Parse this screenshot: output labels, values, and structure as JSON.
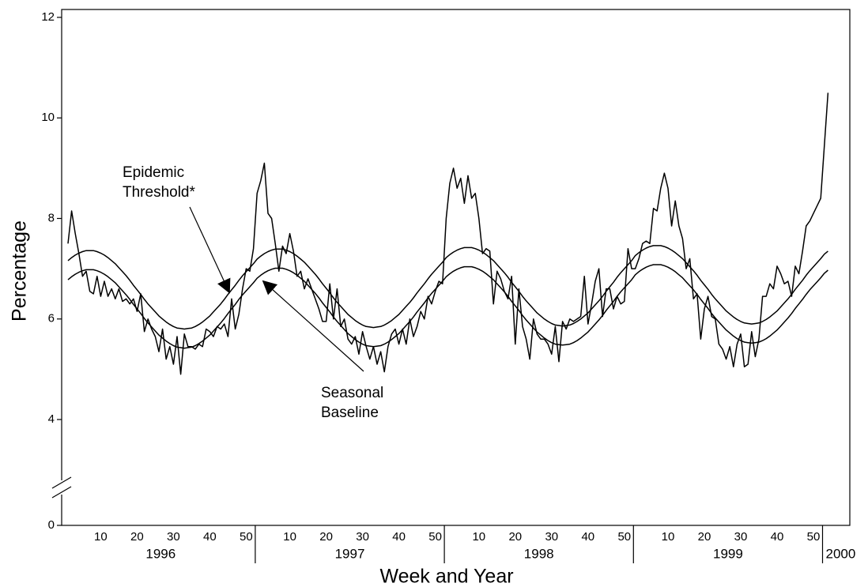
{
  "chart_data": {
    "type": "line",
    "x_label": "Week and Year",
    "y_label": "Percentage",
    "ylim": [
      0,
      12
    ],
    "yticks": [
      0,
      4,
      6,
      8,
      10,
      12
    ],
    "y_axis_break": true,
    "groups": [
      {
        "label": "1996",
        "categories": [
          null,
          null,
          null,
          null,
          null,
          null,
          null,
          null,
          null,
          "10",
          null,
          null,
          null,
          null,
          null,
          null,
          null,
          null,
          null,
          "20",
          null,
          null,
          null,
          null,
          null,
          null,
          null,
          null,
          null,
          "30",
          null,
          null,
          null,
          null,
          null,
          null,
          null,
          null,
          null,
          "40",
          null,
          null,
          null,
          null,
          null,
          null,
          null,
          null,
          null,
          "50",
          null,
          null
        ]
      },
      {
        "label": "1997",
        "categories": [
          null,
          null,
          null,
          null,
          null,
          null,
          null,
          null,
          null,
          "10",
          null,
          null,
          null,
          null,
          null,
          null,
          null,
          null,
          null,
          "20",
          null,
          null,
          null,
          null,
          null,
          null,
          null,
          null,
          null,
          "30",
          null,
          null,
          null,
          null,
          null,
          null,
          null,
          null,
          null,
          "40",
          null,
          null,
          null,
          null,
          null,
          null,
          null,
          null,
          null,
          "50",
          null,
          null
        ]
      },
      {
        "label": "1998",
        "categories": [
          null,
          null,
          null,
          null,
          null,
          null,
          null,
          null,
          null,
          "10",
          null,
          null,
          null,
          null,
          null,
          null,
          null,
          null,
          null,
          "20",
          null,
          null,
          null,
          null,
          null,
          null,
          null,
          null,
          null,
          "30",
          null,
          null,
          null,
          null,
          null,
          null,
          null,
          null,
          null,
          "40",
          null,
          null,
          null,
          null,
          null,
          null,
          null,
          null,
          null,
          "50",
          null,
          null
        ]
      },
      {
        "label": "1999",
        "categories": [
          null,
          null,
          null,
          null,
          null,
          null,
          null,
          null,
          null,
          "10",
          null,
          null,
          null,
          null,
          null,
          null,
          null,
          null,
          null,
          "20",
          null,
          null,
          null,
          null,
          null,
          null,
          null,
          null,
          null,
          "30",
          null,
          null,
          null,
          null,
          null,
          null,
          null,
          null,
          null,
          "40",
          null,
          null,
          null,
          null,
          null,
          null,
          null,
          null,
          null,
          "50",
          null,
          null
        ]
      },
      {
        "label": "2000",
        "categories": [
          null,
          null
        ]
      }
    ],
    "series": [
      {
        "color": "#000000",
        "values": [
          7.5,
          8.15,
          7.7,
          7.3,
          6.85,
          6.95,
          6.55,
          6.5,
          6.85,
          6.45,
          6.75,
          6.45,
          6.6,
          6.4,
          6.6,
          6.35,
          6.4,
          6.3,
          6.4,
          6.15,
          6.5,
          5.75,
          6.0,
          5.8,
          5.65,
          5.35,
          5.8,
          5.2,
          5.45,
          5.1,
          5.65,
          4.9,
          5.7,
          5.45,
          5.45,
          5.4,
          5.5,
          5.45,
          5.8,
          5.75,
          5.65,
          5.85,
          5.8,
          5.9,
          5.65,
          6.4,
          5.8,
          6.1,
          6.6,
          7.0,
          6.95,
          7.4,
          8.5,
          8.75,
          9.1,
          8.1,
          8.0,
          7.5,
          6.95,
          7.45,
          7.3,
          7.7,
          7.35,
          6.85,
          6.95,
          6.6,
          6.8,
          6.6,
          6.4,
          6.2,
          5.95,
          5.95,
          6.7,
          6.0,
          6.6,
          5.85,
          6.0,
          5.6,
          5.5,
          5.65,
          5.3,
          5.75,
          5.45,
          5.2,
          5.45,
          5.1,
          5.35,
          4.95,
          5.45,
          5.7,
          5.8,
          5.5,
          5.8,
          5.5,
          6.0,
          5.65,
          5.85,
          6.15,
          6.0,
          6.45,
          6.3,
          6.55,
          6.75,
          6.7,
          8.0,
          8.7,
          9.0,
          8.6,
          8.8,
          8.3,
          8.85,
          8.4,
          8.5,
          8.0,
          7.3,
          7.4,
          7.35,
          6.3,
          6.95,
          6.8,
          6.55,
          6.4,
          6.85,
          5.5,
          6.6,
          5.85,
          5.6,
          5.2,
          6.0,
          5.7,
          5.6,
          5.6,
          5.5,
          5.3,
          5.85,
          5.15,
          5.95,
          5.8,
          6.0,
          5.95,
          6.0,
          6.05,
          6.85,
          5.9,
          6.3,
          6.75,
          7.0,
          6.05,
          6.6,
          6.6,
          6.2,
          6.45,
          6.3,
          6.35,
          7.4,
          7.0,
          7.0,
          7.2,
          7.5,
          7.55,
          7.5,
          8.2,
          8.15,
          8.6,
          8.9,
          8.6,
          7.85,
          8.35,
          7.85,
          7.6,
          7.0,
          7.2,
          6.4,
          6.5,
          5.6,
          6.2,
          6.45,
          6.05,
          6.0,
          5.5,
          5.4,
          5.2,
          5.45,
          5.05,
          5.5,
          5.7,
          5.05,
          5.1,
          5.75,
          5.25,
          5.6,
          6.45,
          6.45,
          6.7,
          6.6,
          7.05,
          6.9,
          6.7,
          6.75,
          6.45,
          7.05,
          6.9,
          7.35,
          7.85,
          7.95,
          8.1,
          8.25,
          8.4,
          9.45,
          10.5
        ]
      },
      {
        "name": "Epidemic Threshold*",
        "color": "#000000",
        "values": [
          7.16,
          7.22,
          7.27,
          7.31,
          7.34,
          7.36,
          7.36,
          7.36,
          7.34,
          7.31,
          7.27,
          7.22,
          7.16,
          7.1,
          7.02,
          6.94,
          6.86,
          6.77,
          6.67,
          6.58,
          6.49,
          6.39,
          6.3,
          6.22,
          6.14,
          6.06,
          6.0,
          5.94,
          5.89,
          5.85,
          5.82,
          5.81,
          5.8,
          5.81,
          5.82,
          5.85,
          5.89,
          5.94,
          6.0,
          6.06,
          6.14,
          6.22,
          6.3,
          6.39,
          6.49,
          6.58,
          6.67,
          6.77,
          6.86,
          6.94,
          7.02,
          7.1,
          7.19,
          7.25,
          7.3,
          7.34,
          7.37,
          7.39,
          7.39,
          7.39,
          7.37,
          7.34,
          7.3,
          7.25,
          7.19,
          7.13,
          7.05,
          6.97,
          6.89,
          6.8,
          6.7,
          6.61,
          6.52,
          6.42,
          6.33,
          6.25,
          6.17,
          6.09,
          6.03,
          5.97,
          5.92,
          5.88,
          5.85,
          5.84,
          5.83,
          5.84,
          5.85,
          5.88,
          5.92,
          5.97,
          6.03,
          6.09,
          6.17,
          6.25,
          6.33,
          6.42,
          6.52,
          6.61,
          6.7,
          6.8,
          6.89,
          6.97,
          7.05,
          7.13,
          7.22,
          7.28,
          7.33,
          7.37,
          7.4,
          7.42,
          7.42,
          7.42,
          7.4,
          7.37,
          7.33,
          7.28,
          7.22,
          7.16,
          7.08,
          7.0,
          6.92,
          6.83,
          6.73,
          6.64,
          6.55,
          6.45,
          6.36,
          6.28,
          6.2,
          6.12,
          6.06,
          6.0,
          5.95,
          5.91,
          5.88,
          5.87,
          5.86,
          5.87,
          5.88,
          5.91,
          5.95,
          6.0,
          6.06,
          6.12,
          6.2,
          6.28,
          6.36,
          6.45,
          6.55,
          6.64,
          6.73,
          6.83,
          6.92,
          7.0,
          7.08,
          7.16,
          7.26,
          7.32,
          7.37,
          7.41,
          7.44,
          7.46,
          7.46,
          7.46,
          7.44,
          7.41,
          7.37,
          7.32,
          7.26,
          7.2,
          7.12,
          7.04,
          6.96,
          6.87,
          6.77,
          6.68,
          6.59,
          6.49,
          6.4,
          6.32,
          6.24,
          6.16,
          6.1,
          6.04,
          5.99,
          5.95,
          5.92,
          5.91,
          5.9,
          5.91,
          5.92,
          5.95,
          5.99,
          6.04,
          6.1,
          6.16,
          6.24,
          6.32,
          6.4,
          6.49,
          6.59,
          6.68,
          6.77,
          6.87,
          6.96,
          7.04,
          7.12,
          7.2,
          7.29,
          7.35
        ]
      },
      {
        "name": "Seasonal Baseline",
        "color": "#000000",
        "values": [
          6.78,
          6.84,
          6.89,
          6.93,
          6.96,
          6.98,
          6.98,
          6.98,
          6.96,
          6.93,
          6.89,
          6.84,
          6.78,
          6.72,
          6.64,
          6.56,
          6.48,
          6.39,
          6.29,
          6.2,
          6.11,
          6.01,
          5.92,
          5.84,
          5.76,
          5.68,
          5.62,
          5.56,
          5.51,
          5.47,
          5.44,
          5.43,
          5.42,
          5.43,
          5.44,
          5.47,
          5.51,
          5.56,
          5.62,
          5.68,
          5.76,
          5.84,
          5.92,
          6.01,
          6.11,
          6.2,
          6.29,
          6.39,
          6.48,
          6.56,
          6.64,
          6.72,
          6.81,
          6.87,
          6.92,
          6.96,
          6.99,
          7.01,
          7.01,
          7.01,
          6.99,
          6.96,
          6.92,
          6.87,
          6.81,
          6.75,
          6.67,
          6.59,
          6.51,
          6.42,
          6.32,
          6.23,
          6.14,
          6.04,
          5.95,
          5.87,
          5.79,
          5.71,
          5.65,
          5.59,
          5.54,
          5.5,
          5.47,
          5.46,
          5.45,
          5.46,
          5.47,
          5.5,
          5.54,
          5.59,
          5.65,
          5.71,
          5.79,
          5.87,
          5.95,
          6.04,
          6.14,
          6.23,
          6.32,
          6.42,
          6.51,
          6.59,
          6.67,
          6.75,
          6.84,
          6.9,
          6.95,
          6.99,
          7.02,
          7.04,
          7.04,
          7.04,
          7.02,
          6.99,
          6.95,
          6.9,
          6.84,
          6.78,
          6.7,
          6.62,
          6.54,
          6.45,
          6.35,
          6.26,
          6.17,
          6.07,
          5.98,
          5.9,
          5.82,
          5.74,
          5.68,
          5.62,
          5.57,
          5.53,
          5.5,
          5.49,
          5.48,
          5.49,
          5.5,
          5.53,
          5.57,
          5.62,
          5.68,
          5.74,
          5.82,
          5.9,
          5.98,
          6.07,
          6.17,
          6.26,
          6.35,
          6.45,
          6.54,
          6.62,
          6.7,
          6.78,
          6.88,
          6.94,
          6.99,
          7.03,
          7.06,
          7.08,
          7.08,
          7.08,
          7.06,
          7.03,
          6.99,
          6.94,
          6.88,
          6.82,
          6.74,
          6.66,
          6.58,
          6.49,
          6.39,
          6.3,
          6.21,
          6.11,
          6.02,
          5.94,
          5.86,
          5.78,
          5.72,
          5.66,
          5.61,
          5.57,
          5.54,
          5.53,
          5.52,
          5.53,
          5.54,
          5.57,
          5.61,
          5.66,
          5.72,
          5.78,
          5.86,
          5.94,
          6.02,
          6.11,
          6.21,
          6.3,
          6.39,
          6.49,
          6.58,
          6.66,
          6.74,
          6.82,
          6.91,
          6.97
        ]
      }
    ]
  }
}
